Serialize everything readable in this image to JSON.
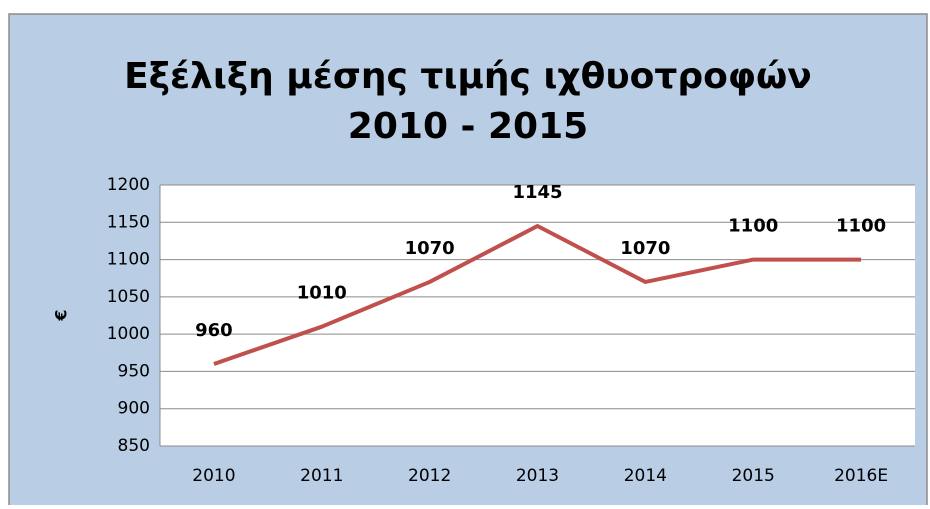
{
  "chart_data": {
    "type": "line",
    "title": [
      "Εξέλιξη μέσης τιμής ιχθυοτροφών",
      "2010 - 2015"
    ],
    "y_label": "€",
    "categories": [
      "2010",
      "2011",
      "2012",
      "2013",
      "2014",
      "2015",
      "2016E"
    ],
    "series": [
      {
        "name": "€",
        "color": "#c0504d",
        "values": [
          960,
          1010,
          1070,
          1145,
          1070,
          1100,
          1100
        ]
      }
    ],
    "ylim": [
      850,
      1200
    ],
    "yticks": [
      850,
      900,
      950,
      1000,
      1050,
      1100,
      1150,
      1200
    ],
    "grid": true,
    "data_labels": true,
    "background": "#b9cde5"
  }
}
